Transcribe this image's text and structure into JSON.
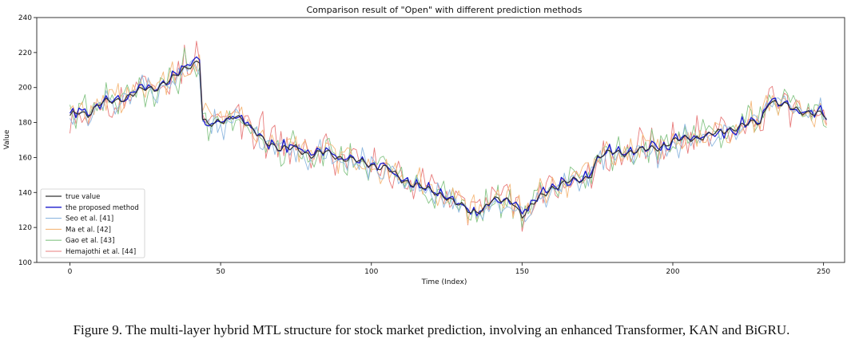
{
  "caption": "Figure 9. The multi-layer hybrid MTL structure for stock market prediction, involving an enhanced Transformer, KAN and BiGRU.",
  "chart_data": {
    "type": "line",
    "title": "Comparison result of \"Open\" with different prediction methods",
    "xlabel": "Time (Index)",
    "ylabel": "Value",
    "xlim": [
      -11,
      257
    ],
    "ylim": [
      100,
      240
    ],
    "xticks": [
      0,
      50,
      100,
      150,
      200,
      250
    ],
    "yticks": [
      100,
      120,
      140,
      160,
      180,
      200,
      220,
      240
    ],
    "grid": false,
    "legend_position": "lower-left",
    "true_anchors": [
      [
        0,
        183
      ],
      [
        3,
        186
      ],
      [
        6,
        185
      ],
      [
        10,
        191
      ],
      [
        15,
        192
      ],
      [
        20,
        196
      ],
      [
        25,
        199
      ],
      [
        28,
        199
      ],
      [
        31,
        203
      ],
      [
        35,
        206
      ],
      [
        38,
        210
      ],
      [
        41,
        214
      ],
      [
        43,
        216
      ],
      [
        44,
        183
      ],
      [
        46,
        178
      ],
      [
        50,
        180
      ],
      [
        55,
        185
      ],
      [
        60,
        176
      ],
      [
        65,
        170
      ],
      [
        70,
        164
      ],
      [
        75,
        166
      ],
      [
        80,
        161
      ],
      [
        85,
        163
      ],
      [
        90,
        160
      ],
      [
        95,
        158
      ],
      [
        100,
        156
      ],
      [
        105,
        154
      ],
      [
        110,
        147
      ],
      [
        115,
        145
      ],
      [
        120,
        140
      ],
      [
        125,
        138
      ],
      [
        130,
        132
      ],
      [
        133,
        128
      ],
      [
        137,
        131
      ],
      [
        140,
        136
      ],
      [
        143,
        135
      ],
      [
        147,
        135
      ],
      [
        150,
        127
      ],
      [
        153,
        132
      ],
      [
        156,
        137
      ],
      [
        160,
        143
      ],
      [
        165,
        146
      ],
      [
        170,
        147
      ],
      [
        173,
        151
      ],
      [
        175,
        160
      ],
      [
        180,
        163
      ],
      [
        185,
        163
      ],
      [
        190,
        164
      ],
      [
        195,
        166
      ],
      [
        200,
        169
      ],
      [
        205,
        171
      ],
      [
        210,
        172
      ],
      [
        215,
        174
      ],
      [
        220,
        177
      ],
      [
        225,
        179
      ],
      [
        229,
        180
      ],
      [
        232,
        193
      ],
      [
        236,
        190
      ],
      [
        240,
        188
      ],
      [
        245,
        186
      ],
      [
        250,
        184
      ],
      [
        251,
        182
      ]
    ],
    "series": [
      {
        "name": "true value",
        "color": "#333333",
        "noise": 0.0,
        "offset": 0.0,
        "seed": 1,
        "width": 1.2
      },
      {
        "name": "the proposed method",
        "color": "#1a1acc",
        "noise": 2.8,
        "offset": 0.5,
        "seed": 7,
        "width": 1.3
      },
      {
        "name": "Seo et al. [41]",
        "color": "#8fb8e0",
        "noise": 6.5,
        "offset": -1.0,
        "seed": 13,
        "width": 0.9
      },
      {
        "name": "Ma et al. [42]",
        "color": "#f5b87a",
        "noise": 7.5,
        "offset": 1.0,
        "seed": 29,
        "width": 0.9
      },
      {
        "name": "Gao et al. [43]",
        "color": "#86c586",
        "noise": 9.0,
        "offset": 0.0,
        "seed": 41,
        "width": 0.9
      },
      {
        "name": "Hemajothi et al. [44]",
        "color": "#e87c7c",
        "noise": 10.0,
        "offset": 1.0,
        "seed": 53,
        "width": 0.9
      }
    ]
  }
}
